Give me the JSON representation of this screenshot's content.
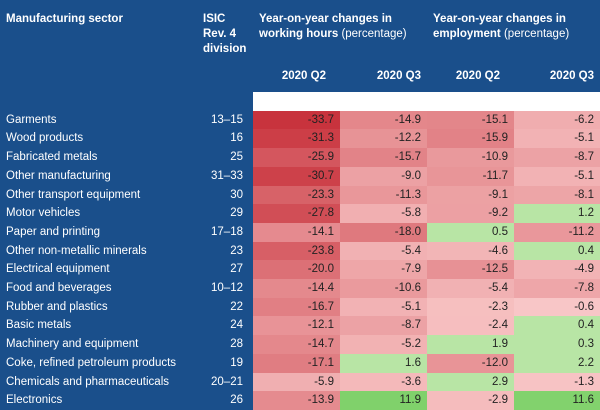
{
  "header": {
    "sector_label": "Manufacturing sector",
    "isic_label_1": "ISIC",
    "isic_label_2": "Rev. 4",
    "isic_label_3": "division",
    "hours_title": "Year-on-year changes in working hours",
    "hours_unit": "(percentage)",
    "employment_title": "Year-on-year changes in employment",
    "employment_unit": "(percentage)",
    "q2_label": "2020 Q2",
    "q3_label": "2020 Q3"
  },
  "colors": {
    "header_bg": "#1a4f8b",
    "neg_max": "#c8323c",
    "neg_light": "#f9c9c9",
    "pos_light": "#d7f0c4",
    "pos_max": "#7fd16a"
  },
  "rows": [
    {
      "sector": "Garments",
      "code": "13–15",
      "hours_q2": "-33.7",
      "hours_q3": "-14.9",
      "emp_q2": "-15.1",
      "emp_q3": "-6.2"
    },
    {
      "sector": "Wood products",
      "code": "16",
      "hours_q2": "-31.3",
      "hours_q3": "-12.2",
      "emp_q2": "-15.9",
      "emp_q3": "-5.1"
    },
    {
      "sector": "Fabricated metals",
      "code": "25",
      "hours_q2": "-25.9",
      "hours_q3": "-15.7",
      "emp_q2": "-10.9",
      "emp_q3": "-8.7"
    },
    {
      "sector": "Other manufacturing",
      "code": "31–33",
      "hours_q2": "-30.7",
      "hours_q3": "-9.0",
      "emp_q2": "-11.7",
      "emp_q3": "-5.1"
    },
    {
      "sector": "Other transport equipment",
      "code": "30",
      "hours_q2": "-23.3",
      "hours_q3": "-11.3",
      "emp_q2": "-9.1",
      "emp_q3": "-8.1"
    },
    {
      "sector": "Motor vehicles",
      "code": "29",
      "hours_q2": "-27.8",
      "hours_q3": "-5.8",
      "emp_q2": "-9.2",
      "emp_q3": "1.2"
    },
    {
      "sector": "Paper and printing",
      "code": "17–18",
      "hours_q2": "-14.1",
      "hours_q3": "-18.0",
      "emp_q2": "0.5",
      "emp_q3": "-11.2"
    },
    {
      "sector": "Other non-metallic minerals",
      "code": "23",
      "hours_q2": "-23.8",
      "hours_q3": "-5.4",
      "emp_q2": "-4.6",
      "emp_q3": "0.4"
    },
    {
      "sector": "Electrical equipment",
      "code": "27",
      "hours_q2": "-20.0",
      "hours_q3": "-7.9",
      "emp_q2": "-12.5",
      "emp_q3": "-4.9"
    },
    {
      "sector": "Food and beverages",
      "code": "10–12",
      "hours_q2": "-14.4",
      "hours_q3": "-10.6",
      "emp_q2": "-5.4",
      "emp_q3": "-7.8"
    },
    {
      "sector": "Rubber and plastics",
      "code": "22",
      "hours_q2": "-16.7",
      "hours_q3": "-5.1",
      "emp_q2": "-2.3",
      "emp_q3": "-0.6"
    },
    {
      "sector": "Basic metals",
      "code": "24",
      "hours_q2": "-12.1",
      "hours_q3": "-8.7",
      "emp_q2": "-2.4",
      "emp_q3": "0.4"
    },
    {
      "sector": "Machinery and equipment",
      "code": "28",
      "hours_q2": "-14.7",
      "hours_q3": "-5.2",
      "emp_q2": "1.9",
      "emp_q3": "0.3"
    },
    {
      "sector": "Coke, refined petroleum products",
      "code": "19",
      "hours_q2": "-17.1",
      "hours_q3": "1.6",
      "emp_q2": "-12.0",
      "emp_q3": "2.2"
    },
    {
      "sector": "Chemicals and pharmaceuticals",
      "code": "20–21",
      "hours_q2": "-5.9",
      "hours_q3": "-3.6",
      "emp_q2": "2.9",
      "emp_q3": "-1.3"
    },
    {
      "sector": "Electronics",
      "code": "26",
      "hours_q2": "-13.9",
      "hours_q3": "11.9",
      "emp_q2": "-2.9",
      "emp_q3": "11.6"
    }
  ]
}
